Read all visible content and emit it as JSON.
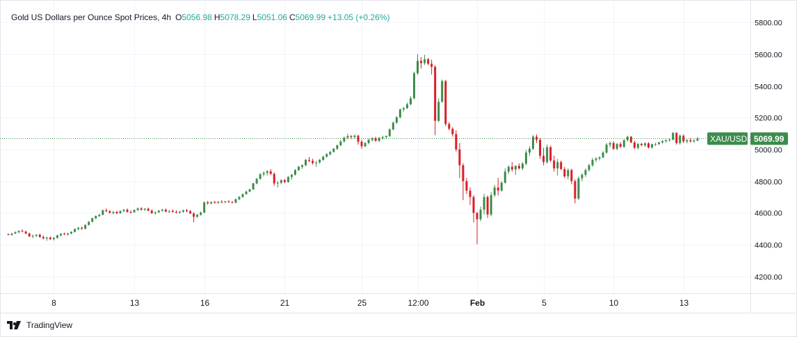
{
  "legend": {
    "title": "Gold US Dollars per Ounce Spot Prices, 4h",
    "o_label": "O",
    "o_value": "5056.98",
    "h_label": "H",
    "h_value": "5078.29",
    "l_label": "L",
    "l_value": "5051.06",
    "c_label": "C",
    "c_value": "5069.99",
    "change": "+13.05 (+0.26%)"
  },
  "brand": {
    "label": "TradingView",
    "icon": "tradingview-logo-icon"
  },
  "colors": {
    "up": "#26a69a",
    "up_candle": "#3c8c4c",
    "down": "#d81f26",
    "grid": "#f0f3fa",
    "axis_text": "#131722",
    "last_price_tag": "#3c8c4c"
  },
  "price_tag": {
    "symbol": "XAU/USD",
    "price": "5069.99"
  },
  "chart_data": {
    "type": "candlestick",
    "title": "Gold US Dollars per Ounce Spot Prices, 4h",
    "timeframe": "4h",
    "y_ticks": [
      4200,
      4400,
      4600,
      4800,
      5000,
      5200,
      5400,
      5600,
      5800
    ],
    "y_tick_labels": [
      "4200.00",
      "4400.00",
      "4600.00",
      "4800.00",
      "5000.00",
      "5200.00",
      "5400.00",
      "5600.00",
      "5800.00"
    ],
    "ylim": [
      4120,
      5880
    ],
    "x_tick_labels": [
      "8",
      "13",
      "16",
      "21",
      "25",
      "12:00",
      "Feb",
      "5",
      "10",
      "13"
    ],
    "x_tick_bar_index": [
      13,
      36,
      56,
      79,
      101,
      117,
      134,
      153,
      173,
      193
    ],
    "last_price": 5069.99,
    "grid": true,
    "candles": [
      [
        4466,
        4470,
        4458,
        4462
      ],
      [
        4462,
        4474,
        4456,
        4470
      ],
      [
        4470,
        4484,
        4466,
        4478
      ],
      [
        4478,
        4490,
        4472,
        4486
      ],
      [
        4486,
        4496,
        4478,
        4482
      ],
      [
        4482,
        4488,
        4466,
        4470
      ],
      [
        4470,
        4476,
        4448,
        4452
      ],
      [
        4452,
        4462,
        4440,
        4456
      ],
      [
        4456,
        4466,
        4448,
        4462
      ],
      [
        4462,
        4470,
        4444,
        4448
      ],
      [
        4448,
        4458,
        4432,
        4440
      ],
      [
        4440,
        4450,
        4424,
        4444
      ],
      [
        4444,
        4452,
        4430,
        4434
      ],
      [
        4434,
        4448,
        4426,
        4442
      ],
      [
        4442,
        4462,
        4438,
        4458
      ],
      [
        4458,
        4472,
        4452,
        4468
      ],
      [
        4468,
        4476,
        4460,
        4464
      ],
      [
        4464,
        4474,
        4458,
        4470
      ],
      [
        4470,
        4484,
        4466,
        4480
      ],
      [
        4480,
        4502,
        4476,
        4498
      ],
      [
        4498,
        4512,
        4490,
        4506
      ],
      [
        4506,
        4514,
        4494,
        4500
      ],
      [
        4500,
        4528,
        4496,
        4524
      ],
      [
        4524,
        4548,
        4520,
        4544
      ],
      [
        4544,
        4570,
        4540,
        4566
      ],
      [
        4566,
        4584,
        4560,
        4580
      ],
      [
        4580,
        4594,
        4574,
        4588
      ],
      [
        4588,
        4622,
        4584,
        4616
      ],
      [
        4616,
        4628,
        4604,
        4610
      ],
      [
        4610,
        4618,
        4596,
        4600
      ],
      [
        4600,
        4612,
        4590,
        4606
      ],
      [
        4606,
        4614,
        4592,
        4598
      ],
      [
        4598,
        4616,
        4594,
        4612
      ],
      [
        4612,
        4624,
        4604,
        4620
      ],
      [
        4620,
        4628,
        4602,
        4606
      ],
      [
        4606,
        4616,
        4596,
        4604
      ],
      [
        4604,
        4622,
        4600,
        4618
      ],
      [
        4618,
        4634,
        4612,
        4628
      ],
      [
        4628,
        4636,
        4614,
        4620
      ],
      [
        4620,
        4630,
        4612,
        4626
      ],
      [
        4626,
        4634,
        4610,
        4614
      ],
      [
        4614,
        4622,
        4594,
        4598
      ],
      [
        4598,
        4608,
        4588,
        4604
      ],
      [
        4604,
        4618,
        4598,
        4614
      ],
      [
        4614,
        4626,
        4608,
        4620
      ],
      [
        4620,
        4628,
        4604,
        4608
      ],
      [
        4608,
        4616,
        4598,
        4612
      ],
      [
        4612,
        4622,
        4602,
        4606
      ],
      [
        4606,
        4616,
        4596,
        4602
      ],
      [
        4602,
        4612,
        4594,
        4608
      ],
      [
        4608,
        4620,
        4600,
        4616
      ],
      [
        4616,
        4624,
        4604,
        4610
      ],
      [
        4610,
        4618,
        4594,
        4596
      ],
      [
        4596,
        4604,
        4540,
        4576
      ],
      [
        4576,
        4594,
        4568,
        4588
      ],
      [
        4588,
        4608,
        4582,
        4602
      ],
      [
        4602,
        4672,
        4598,
        4666
      ],
      [
        4666,
        4676,
        4652,
        4660
      ],
      [
        4660,
        4672,
        4654,
        4668
      ],
      [
        4668,
        4676,
        4658,
        4664
      ],
      [
        4664,
        4674,
        4656,
        4670
      ],
      [
        4670,
        4680,
        4662,
        4668
      ],
      [
        4668,
        4676,
        4660,
        4672
      ],
      [
        4672,
        4680,
        4664,
        4668
      ],
      [
        4668,
        4674,
        4660,
        4664
      ],
      [
        4664,
        4690,
        4660,
        4686
      ],
      [
        4686,
        4706,
        4680,
        4700
      ],
      [
        4700,
        4722,
        4696,
        4718
      ],
      [
        4718,
        4740,
        4714,
        4734
      ],
      [
        4734,
        4752,
        4730,
        4748
      ],
      [
        4748,
        4790,
        4744,
        4786
      ],
      [
        4786,
        4820,
        4780,
        4814
      ],
      [
        4814,
        4850,
        4810,
        4844
      ],
      [
        4844,
        4862,
        4830,
        4852
      ],
      [
        4852,
        4870,
        4836,
        4862
      ],
      [
        4862,
        4876,
        4840,
        4846
      ],
      [
        4846,
        4854,
        4770,
        4786
      ],
      [
        4786,
        4800,
        4760,
        4790
      ],
      [
        4790,
        4812,
        4780,
        4806
      ],
      [
        4806,
        4814,
        4786,
        4794
      ],
      [
        4794,
        4832,
        4790,
        4826
      ],
      [
        4826,
        4846,
        4810,
        4840
      ],
      [
        4840,
        4876,
        4836,
        4870
      ],
      [
        4870,
        4896,
        4864,
        4890
      ],
      [
        4890,
        4906,
        4878,
        4900
      ],
      [
        4900,
        4940,
        4894,
        4934
      ],
      [
        4934,
        4952,
        4920,
        4928
      ],
      [
        4928,
        4942,
        4904,
        4914
      ],
      [
        4914,
        4928,
        4890,
        4918
      ],
      [
        4918,
        4940,
        4910,
        4934
      ],
      [
        4934,
        4960,
        4928,
        4954
      ],
      [
        4954,
        4976,
        4948,
        4970
      ],
      [
        4970,
        4990,
        4962,
        4984
      ],
      [
        4984,
        5010,
        4980,
        5004
      ],
      [
        5004,
        5030,
        4996,
        5026
      ],
      [
        5026,
        5060,
        5020,
        5050
      ],
      [
        5050,
        5080,
        5044,
        5074
      ],
      [
        5074,
        5098,
        5064,
        5084
      ],
      [
        5084,
        5090,
        5064,
        5078
      ],
      [
        5078,
        5094,
        5068,
        5086
      ],
      [
        5086,
        5092,
        5030,
        5048
      ],
      [
        5048,
        5060,
        5004,
        5020
      ],
      [
        5020,
        5046,
        5014,
        5040
      ],
      [
        5040,
        5068,
        5032,
        5060
      ],
      [
        5060,
        5078,
        5050,
        5070
      ],
      [
        5070,
        5080,
        5048,
        5054
      ],
      [
        5054,
        5078,
        5046,
        5072
      ],
      [
        5072,
        5086,
        5062,
        5078
      ],
      [
        5078,
        5088,
        5068,
        5084
      ],
      [
        5084,
        5134,
        5078,
        5126
      ],
      [
        5126,
        5176,
        5120,
        5168
      ],
      [
        5168,
        5210,
        5162,
        5202
      ],
      [
        5202,
        5258,
        5196,
        5252
      ],
      [
        5252,
        5268,
        5238,
        5260
      ],
      [
        5260,
        5296,
        5254,
        5284
      ],
      [
        5284,
        5336,
        5278,
        5322
      ],
      [
        5322,
        5490,
        5316,
        5480
      ],
      [
        5480,
        5600,
        5470,
        5558
      ],
      [
        5558,
        5582,
        5510,
        5544
      ],
      [
        5544,
        5596,
        5532,
        5568
      ],
      [
        5568,
        5576,
        5530,
        5540
      ],
      [
        5540,
        5566,
        5472,
        5520
      ],
      [
        5520,
        5532,
        5090,
        5180
      ],
      [
        5180,
        5320,
        5172,
        5300
      ],
      [
        5300,
        5440,
        5294,
        5430
      ],
      [
        5430,
        5438,
        5146,
        5160
      ],
      [
        5160,
        5172,
        5120,
        5130
      ],
      [
        5130,
        5140,
        5080,
        5096
      ],
      [
        5096,
        5120,
        4986,
        5000
      ],
      [
        5000,
        5040,
        4820,
        4900
      ],
      [
        4900,
        4912,
        4680,
        4800
      ],
      [
        4800,
        4820,
        4720,
        4740
      ],
      [
        4740,
        4760,
        4650,
        4700
      ],
      [
        4700,
        4712,
        4540,
        4600
      ],
      [
        4600,
        4605,
        4402,
        4560
      ],
      [
        4560,
        4640,
        4548,
        4620
      ],
      [
        4620,
        4720,
        4590,
        4700
      ],
      [
        4700,
        4710,
        4568,
        4590
      ],
      [
        4590,
        4730,
        4578,
        4712
      ],
      [
        4712,
        4776,
        4700,
        4760
      ],
      [
        4760,
        4820,
        4710,
        4740
      ],
      [
        4740,
        4800,
        4734,
        4790
      ],
      [
        4790,
        4880,
        4784,
        4860
      ],
      [
        4860,
        4900,
        4846,
        4890
      ],
      [
        4890,
        4920,
        4860,
        4874
      ],
      [
        4874,
        4900,
        4840,
        4896
      ],
      [
        4896,
        4912,
        4874,
        4880
      ],
      [
        4880,
        4920,
        4870,
        4910
      ],
      [
        4910,
        4996,
        4900,
        4980
      ],
      [
        4980,
        5020,
        4960,
        5004
      ],
      [
        5004,
        5090,
        4996,
        5080
      ],
      [
        5080,
        5094,
        5040,
        5060
      ],
      [
        5060,
        5072,
        4940,
        4960
      ],
      [
        4960,
        5010,
        4900,
        4920
      ],
      [
        4920,
        5030,
        4910,
        5014
      ],
      [
        5014,
        5024,
        4920,
        4930
      ],
      [
        4930,
        4960,
        4860,
        4880
      ],
      [
        4880,
        4940,
        4836,
        4920
      ],
      [
        4920,
        4930,
        4870,
        4876
      ],
      [
        4876,
        4890,
        4820,
        4830
      ],
      [
        4830,
        4880,
        4810,
        4870
      ],
      [
        4870,
        4878,
        4780,
        4800
      ],
      [
        4800,
        4810,
        4660,
        4690
      ],
      [
        4690,
        4830,
        4680,
        4818
      ],
      [
        4818,
        4850,
        4800,
        4840
      ],
      [
        4840,
        4880,
        4826,
        4870
      ],
      [
        4870,
        4910,
        4860,
        4900
      ],
      [
        4900,
        4946,
        4890,
        4934
      ],
      [
        4934,
        4952,
        4920,
        4942
      ],
      [
        4942,
        4956,
        4930,
        4950
      ],
      [
        4950,
        4990,
        4944,
        4980
      ],
      [
        4980,
        5040,
        4972,
        5030
      ],
      [
        5030,
        5050,
        5014,
        5040
      ],
      [
        5040,
        5052,
        4996,
        5004
      ],
      [
        5004,
        5040,
        4994,
        5034
      ],
      [
        5034,
        5046,
        5010,
        5016
      ],
      [
        5016,
        5064,
        5010,
        5058
      ],
      [
        5058,
        5086,
        5050,
        5080
      ],
      [
        5080,
        5084,
        5040,
        5044
      ],
      [
        5044,
        5054,
        5002,
        5010
      ],
      [
        5010,
        5040,
        5000,
        5034
      ],
      [
        5034,
        5042,
        5020,
        5026
      ],
      [
        5026,
        5044,
        5016,
        5038
      ],
      [
        5038,
        5046,
        5006,
        5012
      ],
      [
        5012,
        5036,
        5006,
        5032
      ],
      [
        5032,
        5042,
        5022,
        5034
      ],
      [
        5034,
        5048,
        5028,
        5044
      ],
      [
        5044,
        5058,
        5036,
        5052
      ],
      [
        5052,
        5062,
        5042,
        5058
      ],
      [
        5058,
        5068,
        5048,
        5062
      ],
      [
        5062,
        5110,
        5056,
        5104
      ],
      [
        5104,
        5108,
        5030,
        5040
      ],
      [
        5040,
        5094,
        5030,
        5086
      ],
      [
        5086,
        5094,
        5040,
        5050
      ],
      [
        5050,
        5064,
        5038,
        5058
      ],
      [
        5058,
        5072,
        5044,
        5050
      ],
      [
        5050,
        5064,
        5042,
        5056
      ],
      [
        5056,
        5078,
        5051,
        5069
      ]
    ]
  }
}
